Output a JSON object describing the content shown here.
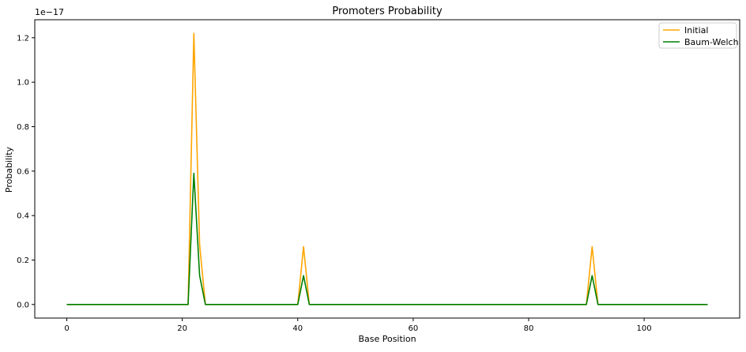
{
  "chart_data": {
    "type": "line",
    "title": "Promoters Probability",
    "xlabel": "Base Position",
    "ylabel": "Probability",
    "offset_text": "1e−17",
    "scale_exponent": -17,
    "xlim": [
      -5.55,
      116.55
    ],
    "ylim": [
      -0.061,
      1.281
    ],
    "xticks": [
      0,
      20,
      40,
      60,
      80,
      100
    ],
    "yticks": [
      0.0,
      0.2,
      0.4,
      0.6,
      0.8,
      1.0,
      1.2
    ],
    "ytick_labels": [
      "0.0",
      "0.2",
      "0.4",
      "0.6",
      "0.8",
      "1.0",
      "1.2"
    ],
    "grid": false,
    "legend_position": "top-right",
    "x": [
      0,
      21,
      22,
      23,
      24,
      40,
      41,
      42,
      90,
      91,
      92,
      111
    ],
    "series": [
      {
        "name": "Initial",
        "color": "#FFA500",
        "values": [
          0,
          0,
          1.22,
          0.27,
          0,
          0,
          0.26,
          0,
          0,
          0.26,
          0,
          0
        ]
      },
      {
        "name": "Baum-Welch",
        "color": "#008000",
        "values": [
          0,
          0,
          0.59,
          0.13,
          0,
          0,
          0.13,
          0,
          0,
          0.13,
          0,
          0
        ]
      }
    ]
  }
}
